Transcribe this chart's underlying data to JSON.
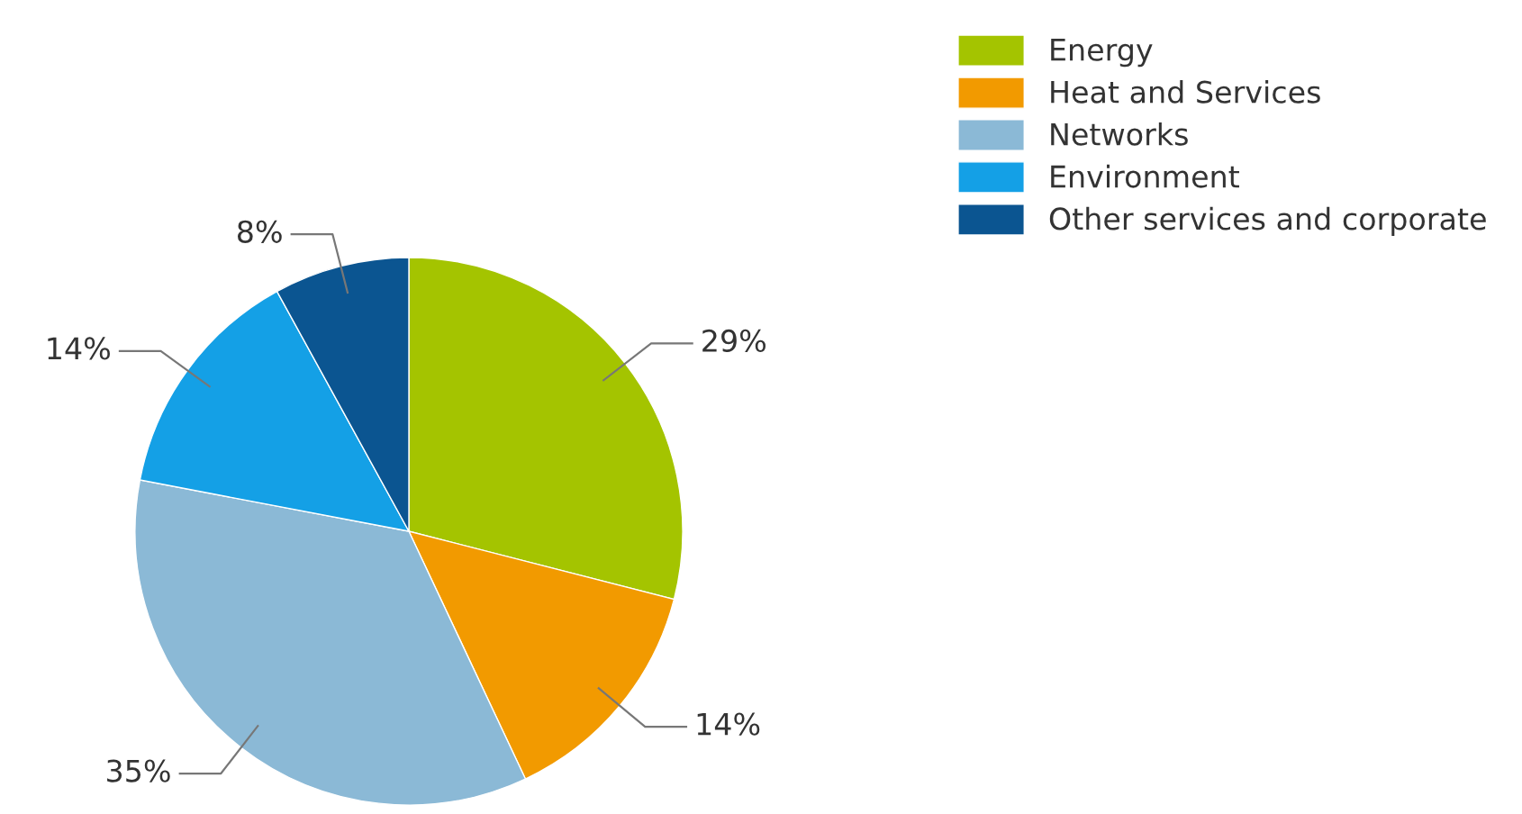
{
  "chart_data": {
    "type": "pie",
    "categories": [
      "Energy",
      "Heat and Services",
      "Networks",
      "Environment",
      "Other services and corporate"
    ],
    "values": [
      29,
      14,
      35,
      14,
      8
    ],
    "colors": [
      "#a4c400",
      "#f29a00",
      "#8bb9d6",
      "#14a0e6",
      "#0b5591"
    ],
    "value_labels": [
      "29%",
      "14%",
      "35%",
      "14%",
      "8%"
    ],
    "legend": "top right"
  }
}
